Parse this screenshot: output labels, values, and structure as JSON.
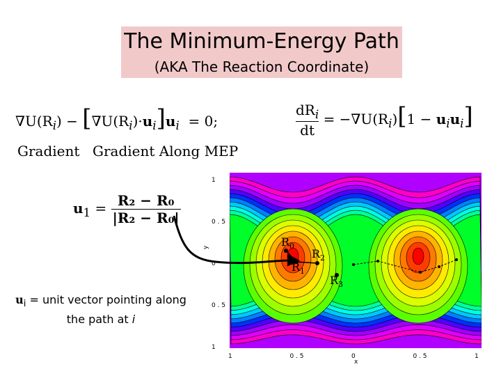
{
  "title": {
    "main": "The Minimum-Energy Path",
    "sub": "(AKA The Reaction Coordinate)"
  },
  "equations": {
    "gradient_label": "Gradient",
    "gradient_along_label": "Gradient Along MEP",
    "eq1_lhs": "∇U(R",
    "eq1_rhs": "= 0;",
    "eq2_lhs": "dR",
    "eq2_den": "dt",
    "eq2_rhs": "= −∇U(R",
    "u1_lhs": "u",
    "u1_num": "R₂ − R₀",
    "u1_den": "|R₂ − R₀|"
  },
  "note": {
    "symbol": "u",
    "sub": "i",
    "text": " = unit vector pointing along the path at ",
    "italic_i": "i"
  },
  "plot": {
    "xticks": [
      "1",
      "0 . 5",
      "0",
      "0 . 5",
      "1"
    ],
    "yticks": [
      "1",
      "0 . 5",
      "0",
      "0 . 5",
      "1"
    ],
    "xlabel": "x",
    "ylabel": "y",
    "point_labels": [
      "R",
      "R",
      "R",
      "R"
    ],
    "point_subs": [
      "0",
      "2",
      "1",
      "3"
    ],
    "colors": [
      "#ff0000",
      "#ff3c00",
      "#ff7a00",
      "#ffb400",
      "#ffea00",
      "#d9ff00",
      "#9cff00",
      "#5cff00",
      "#00ff2a",
      "#00ff9c",
      "#00ffe0",
      "#00c8ff",
      "#0080ff",
      "#0030ff",
      "#5000ff",
      "#a000ff",
      "#e000ff",
      "#ff00c8"
    ]
  }
}
